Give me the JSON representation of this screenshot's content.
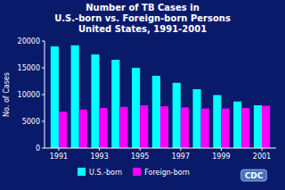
{
  "chart_data": {
    "type": "bar",
    "title": "Number of TB Cases in\nU.S.-born vs. Foreign-born Persons\nUnited States, 1991-2001",
    "y_label": "No. of Cases",
    "annotations": [
      "CDC"
    ],
    "x": [
      1991,
      1992,
      1993,
      1994,
      1995,
      1996,
      1997,
      1998,
      1999,
      2000,
      2001
    ],
    "series": [
      {
        "name": "U.S.-born",
        "color": "#00FFFF",
        "values": [
          19000,
          19200,
          17500,
          16500,
          15000,
          13500,
          12200,
          11000,
          9900,
          8700,
          8000
        ]
      },
      {
        "name": "Foreign-born",
        "color": "#FF00FF",
        "values": [
          6800,
          7200,
          7500,
          7700,
          8000,
          7800,
          7600,
          7400,
          7400,
          7500,
          7900
        ]
      }
    ],
    "xlim": [
      1990.3,
      2001.7
    ],
    "xticks": [
      1991,
      1993,
      1995,
      1997,
      1999,
      2001
    ],
    "ylim": [
      0,
      20000
    ],
    "yticks": [
      0,
      5000,
      10000,
      15000,
      20000
    ],
    "grid": false,
    "legend": "bottom"
  }
}
